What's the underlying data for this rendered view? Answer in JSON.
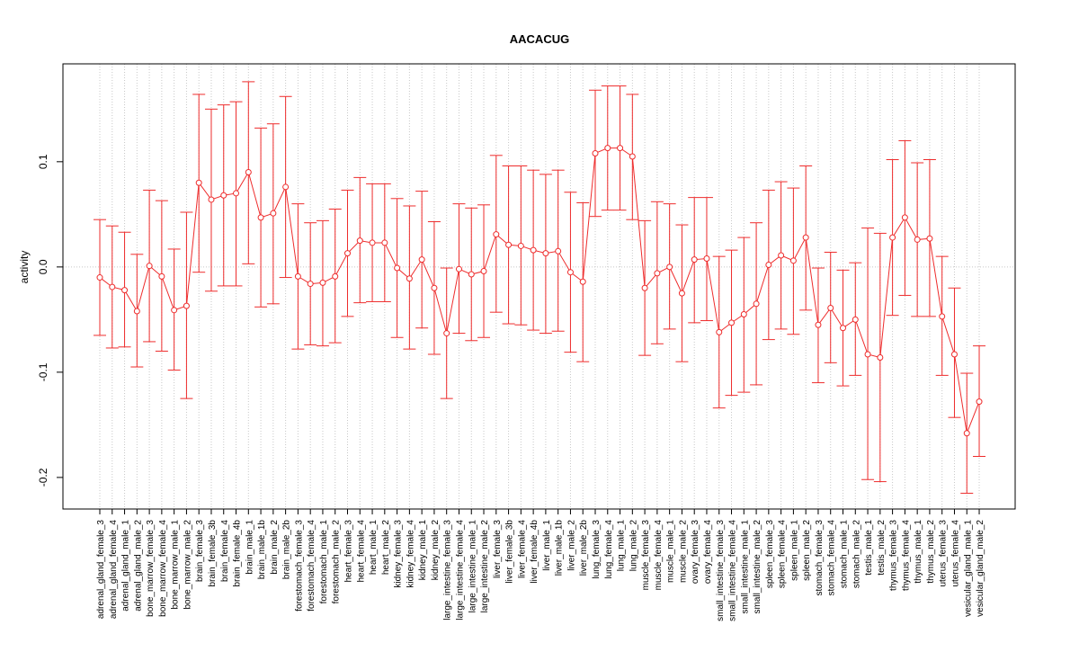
{
  "chart_data": {
    "type": "line",
    "title": "AACACUG",
    "xlabel": "",
    "ylabel": "activity",
    "ylim": [
      -0.23,
      0.193
    ],
    "yticks": [
      -0.2,
      -0.1,
      0.0,
      0.1
    ],
    "ytick_labels": [
      "-0.2",
      "-0.1",
      "0.0",
      "0.1"
    ],
    "grid": true,
    "error_bars": true,
    "colors": {
      "series": "#ee2c2c",
      "grid": "#c8c8c8",
      "axis": "#000000"
    },
    "categories": [
      "adrenal_gland_female_3",
      "adrenal_gland_female_4",
      "adrenal_gland_male_1",
      "adrenal_gland_male_2",
      "bone_marrow_female_3",
      "bone_marrow_female_4",
      "bone_marrow_male_1",
      "bone_marrow_male_2",
      "brain_female_3",
      "brain_female_3b",
      "brain_female_4",
      "brain_female_4b",
      "brain_male_1",
      "brain_male_1b",
      "brain_male_2",
      "brain_male_2b",
      "forestomach_female_3",
      "forestomach_female_4",
      "forestomach_male_1",
      "forestomach_male_2",
      "heart_female_3",
      "heart_female_4",
      "heart_male_1",
      "heart_male_2",
      "kidney_female_3",
      "kidney_female_4",
      "kidney_male_1",
      "kidney_male_2",
      "large_intestine_female_3",
      "large_intestine_female_4",
      "large_intestine_male_1",
      "large_intestine_male_2",
      "liver_female_3",
      "liver_female_3b",
      "liver_female_4",
      "liver_female_4b",
      "liver_male_1",
      "liver_male_1b",
      "liver_male_2",
      "liver_male_2b",
      "lung_female_3",
      "lung_female_4",
      "lung_male_1",
      "lung_male_2",
      "muscle_female_3",
      "muscle_female_4",
      "muscle_male_1",
      "muscle_male_2",
      "ovary_female_3",
      "ovary_female_4",
      "small_intestine_female_3",
      "small_intestine_female_4",
      "small_intestine_male_1",
      "small_intestine_male_2",
      "spleen_female_3",
      "spleen_female_4",
      "spleen_male_1",
      "spleen_male_2",
      "stomach_female_3",
      "stomach_female_4",
      "stomach_male_1",
      "stomach_male_2",
      "testis_male_1",
      "testis_male_2",
      "thymus_female_3",
      "thymus_female_4",
      "thymus_male_1",
      "thymus_male_2",
      "uterus_female_3",
      "uterus_female_4",
      "vesicular_gland_male_1",
      "vesicular_gland_male_2"
    ],
    "series": [
      {
        "values": [
          -0.01,
          -0.019,
          -0.022,
          -0.042,
          0.001,
          -0.009,
          -0.041,
          -0.037,
          0.08,
          0.064,
          0.068,
          0.07,
          0.09,
          0.047,
          0.051,
          0.076,
          -0.009,
          -0.016,
          -0.015,
          -0.009,
          0.013,
          0.025,
          0.023,
          0.023,
          -0.001,
          -0.011,
          0.007,
          -0.02,
          -0.063,
          -0.002,
          -0.007,
          -0.004,
          0.031,
          0.021,
          0.02,
          0.016,
          0.013,
          0.015,
          -0.005,
          -0.014,
          0.108,
          0.113,
          0.113,
          0.105,
          -0.02,
          -0.006,
          0.0,
          -0.025,
          0.007,
          0.008,
          -0.062,
          -0.053,
          -0.045,
          -0.035,
          0.002,
          0.011,
          0.006,
          0.028,
          -0.055,
          -0.039,
          -0.058,
          -0.05,
          -0.083,
          -0.086,
          0.028,
          0.047,
          0.026,
          0.027,
          -0.047,
          -0.083,
          -0.158,
          -0.128
        ],
        "lower": [
          -0.065,
          -0.077,
          -0.076,
          -0.095,
          -0.071,
          -0.08,
          -0.098,
          -0.125,
          -0.005,
          -0.023,
          -0.018,
          -0.018,
          0.003,
          -0.038,
          -0.035,
          -0.01,
          -0.078,
          -0.074,
          -0.075,
          -0.072,
          -0.047,
          -0.034,
          -0.033,
          -0.033,
          -0.067,
          -0.078,
          -0.058,
          -0.083,
          -0.125,
          -0.063,
          -0.07,
          -0.067,
          -0.043,
          -0.054,
          -0.055,
          -0.06,
          -0.063,
          -0.061,
          -0.081,
          -0.09,
          0.048,
          0.054,
          0.054,
          0.045,
          -0.084,
          -0.073,
          -0.059,
          -0.09,
          -0.053,
          -0.051,
          -0.134,
          -0.122,
          -0.119,
          -0.112,
          -0.069,
          -0.059,
          -0.064,
          -0.041,
          -0.11,
          -0.091,
          -0.113,
          -0.103,
          -0.202,
          -0.204,
          -0.046,
          -0.027,
          -0.047,
          -0.047,
          -0.103,
          -0.143,
          -0.215,
          -0.18
        ],
        "upper": [
          0.045,
          0.039,
          0.033,
          0.012,
          0.073,
          0.063,
          0.017,
          0.052,
          0.164,
          0.15,
          0.154,
          0.157,
          0.176,
          0.132,
          0.136,
          0.162,
          0.06,
          0.042,
          0.044,
          0.055,
          0.073,
          0.085,
          0.079,
          0.079,
          0.065,
          0.058,
          0.072,
          0.043,
          -0.001,
          0.06,
          0.056,
          0.059,
          0.106,
          0.096,
          0.096,
          0.092,
          0.088,
          0.092,
          0.071,
          0.061,
          0.168,
          0.172,
          0.172,
          0.164,
          0.044,
          0.062,
          0.06,
          0.04,
          0.066,
          0.066,
          0.01,
          0.016,
          0.028,
          0.042,
          0.073,
          0.081,
          0.075,
          0.096,
          -0.001,
          0.014,
          -0.003,
          0.004,
          0.037,
          0.032,
          0.102,
          0.12,
          0.099,
          0.102,
          0.01,
          -0.02,
          -0.101,
          -0.075
        ]
      }
    ]
  }
}
